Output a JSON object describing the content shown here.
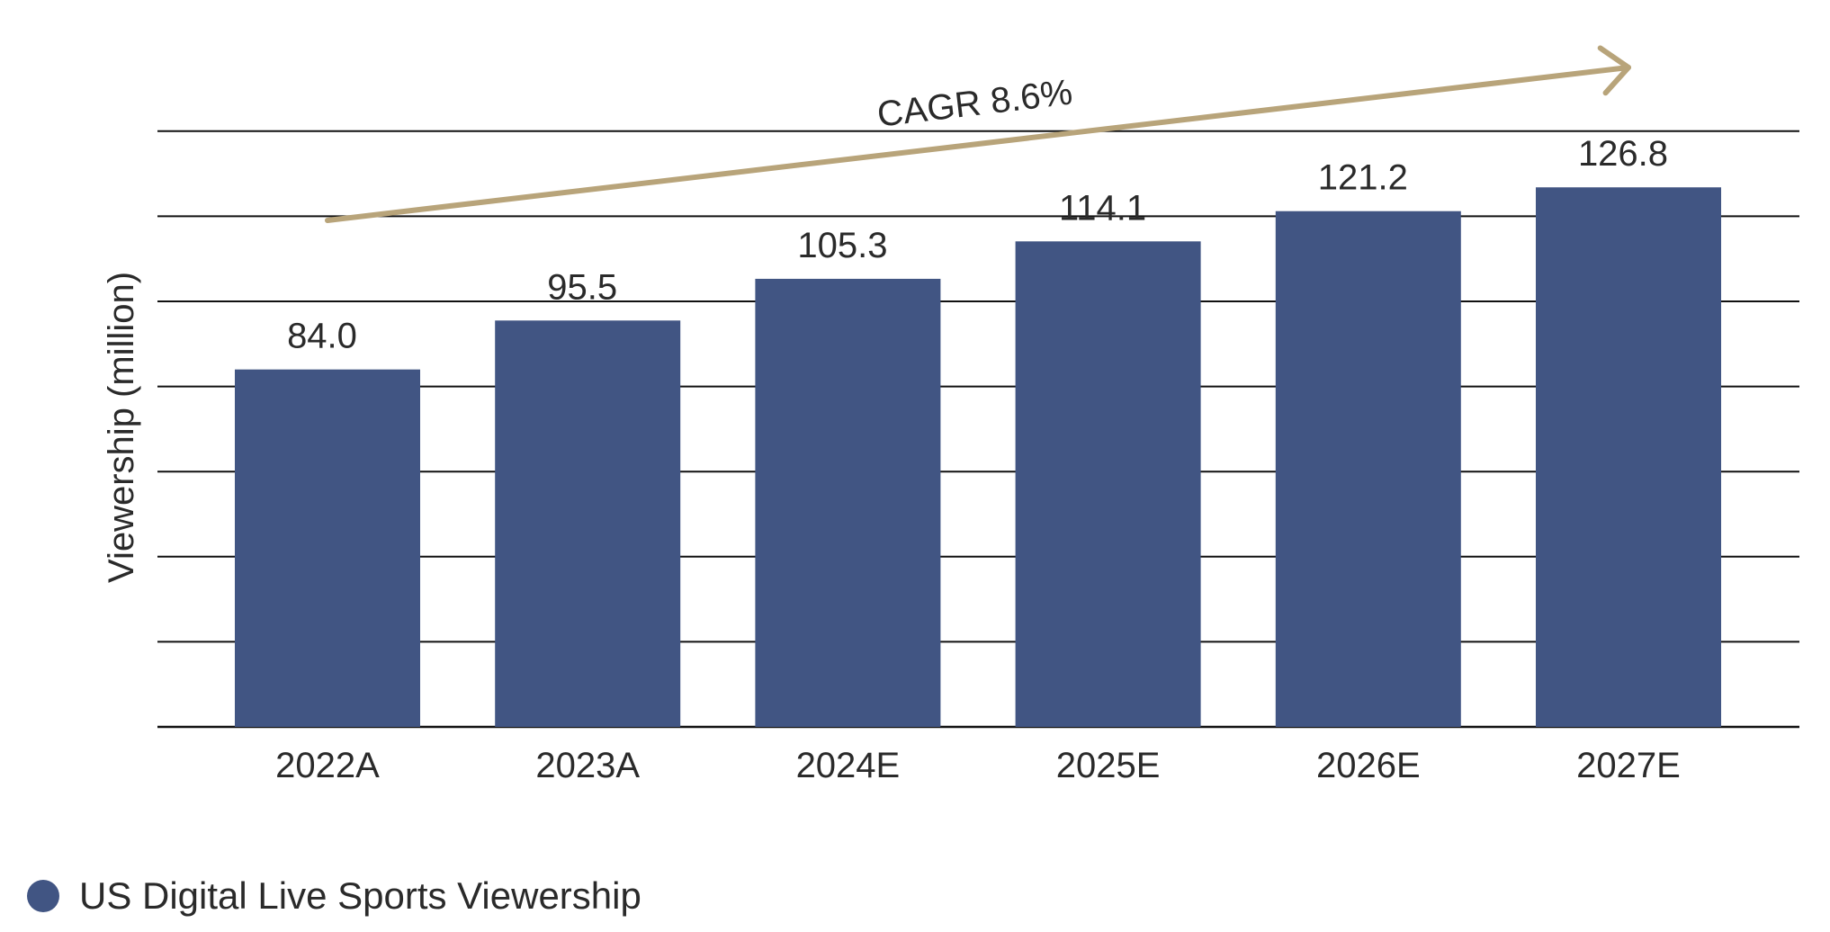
{
  "colors": {
    "bar": "#415583",
    "arrow": "#b8a47a",
    "grid": "#111111",
    "text": "#2a2a2a"
  },
  "chart_data": {
    "type": "bar",
    "categories": [
      "2022A",
      "2023A",
      "2024E",
      "2025E",
      "2026E",
      "2027E"
    ],
    "series": [
      {
        "name": "US Digital Live Sports Viewership",
        "values": [
          84.0,
          95.5,
          105.3,
          114.1,
          121.2,
          126.8
        ],
        "labels": [
          "84.0",
          "95.5",
          "105.3",
          "114.1",
          "121.2",
          "126.8"
        ]
      }
    ],
    "ylabel": "Viewership (million)",
    "ylim": [
      0,
      140
    ],
    "grid": true,
    "y_tick_labels_shown": false,
    "annotation": {
      "text": "CAGR 8.6%",
      "type": "trend-arrow"
    },
    "legend": {
      "position": "bottom-left",
      "entries": [
        "US Digital Live Sports Viewership"
      ]
    }
  }
}
